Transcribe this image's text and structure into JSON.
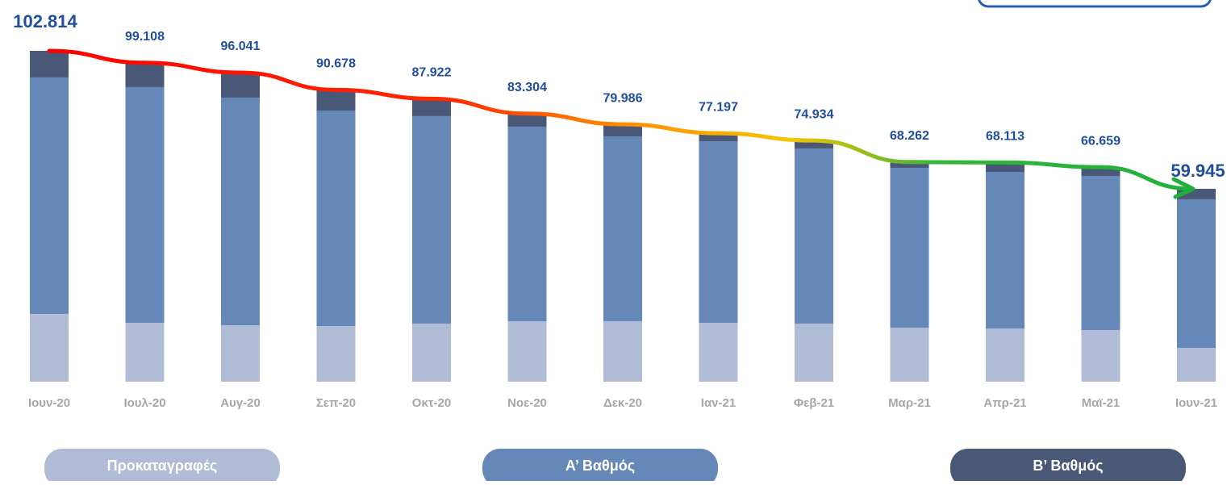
{
  "chart_data": {
    "type": "stacked_bar",
    "categories": [
      "Ιουν-20",
      "Ιουλ-20",
      "Αυγ-20",
      "Σεπ-20",
      "Οκτ-20",
      "Νοε-20",
      "Δεκ-20",
      "Ιαν-21",
      "Φεβ-21",
      "Μαρ-21",
      "Απρ-21",
      "Μαϊ-21",
      "Ιουν-21"
    ],
    "series": [
      {
        "name": "Προκαταγραφές",
        "color": "#b0bcd6",
        "values": [
          21070,
          18300,
          17560,
          17300,
          18060,
          18810,
          18810,
          18300,
          18060,
          16800,
          16550,
          16050,
          10530
        ]
      },
      {
        "name": "Α’ Βαθμός",
        "color": "#6688b8",
        "values": [
          73480,
          73240,
          70720,
          66960,
          64460,
          60440,
          57430,
          56430,
          54420,
          49660,
          48650,
          47900,
          46150
        ]
      },
      {
        "name": "Β’ Βαθμός",
        "color": "#4a5878",
        "values": [
          8264,
          7568,
          7761,
          6418,
          5402,
          4054,
          3746,
          2467,
          2454,
          1802,
          2913,
          2709,
          3265
        ]
      }
    ],
    "totals": [
      102814,
      99108,
      96041,
      90678,
      87922,
      83304,
      79986,
      77197,
      74934,
      68262,
      68113,
      66659,
      59945
    ],
    "value_labels": [
      "102.814",
      "99.108",
      "96.041",
      "90.678",
      "87.922",
      "83.304",
      "79.986",
      "77.197",
      "74.934",
      "68.262",
      "68.113",
      "66.659",
      "59.945"
    ]
  }
}
